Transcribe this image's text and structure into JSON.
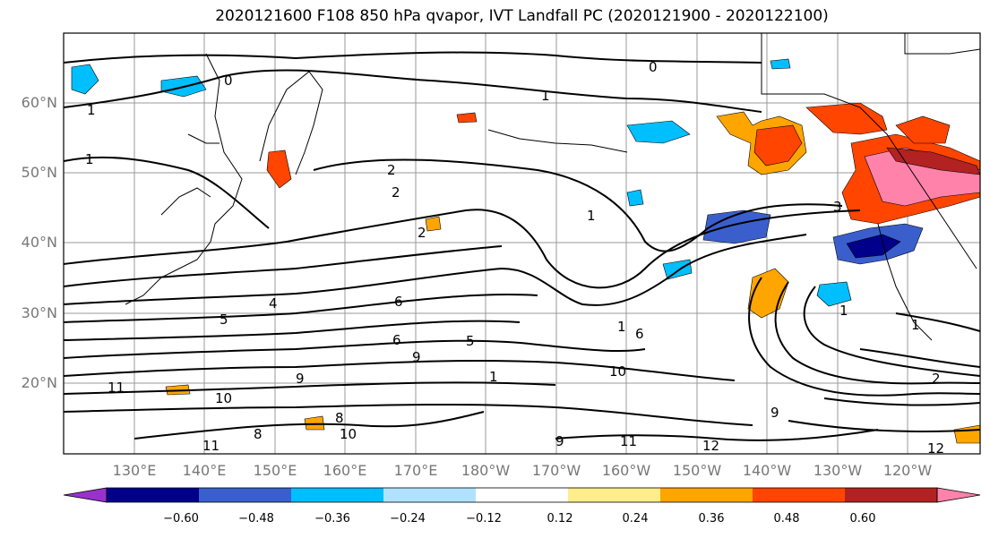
{
  "title": "2020121600 F108 850 hPa qvapor, IVT Landfall PC (2020121900 - 2020122100)",
  "lat_labels": [
    "60°N",
    "50°N",
    "40°N",
    "30°N",
    "20°N"
  ],
  "lon_labels": [
    "130°E",
    "140°E",
    "150°E",
    "160°E",
    "170°E",
    "180°W",
    "170°W",
    "160°W",
    "150°W",
    "140°W",
    "130°W",
    "120°W"
  ],
  "colorbar": {
    "ticks": [
      "−0.60",
      "−0.48",
      "−0.36",
      "−0.24",
      "−0.12",
      "0.12",
      "0.24",
      "0.36",
      "0.48",
      "0.60"
    ],
    "colors": [
      "#9932cc",
      "#00008b",
      "#3a5fcd",
      "#00bfff",
      "#b0e2ff",
      "#ffffff",
      "#ffec8b",
      "#ffa500",
      "#ff4500",
      "#b22222",
      "#ff82ab"
    ]
  },
  "contour_labels": [
    "0",
    "0",
    "1",
    "1",
    "1",
    "2",
    "2",
    "1",
    "2",
    "3",
    "4",
    "5",
    "6",
    "5",
    "6",
    "9",
    "9",
    "1",
    "1",
    "6",
    "10",
    "11",
    "10",
    "8",
    "11",
    "10",
    "9",
    "11",
    "12",
    "9",
    "1",
    "1",
    "2",
    "12",
    "8"
  ]
}
